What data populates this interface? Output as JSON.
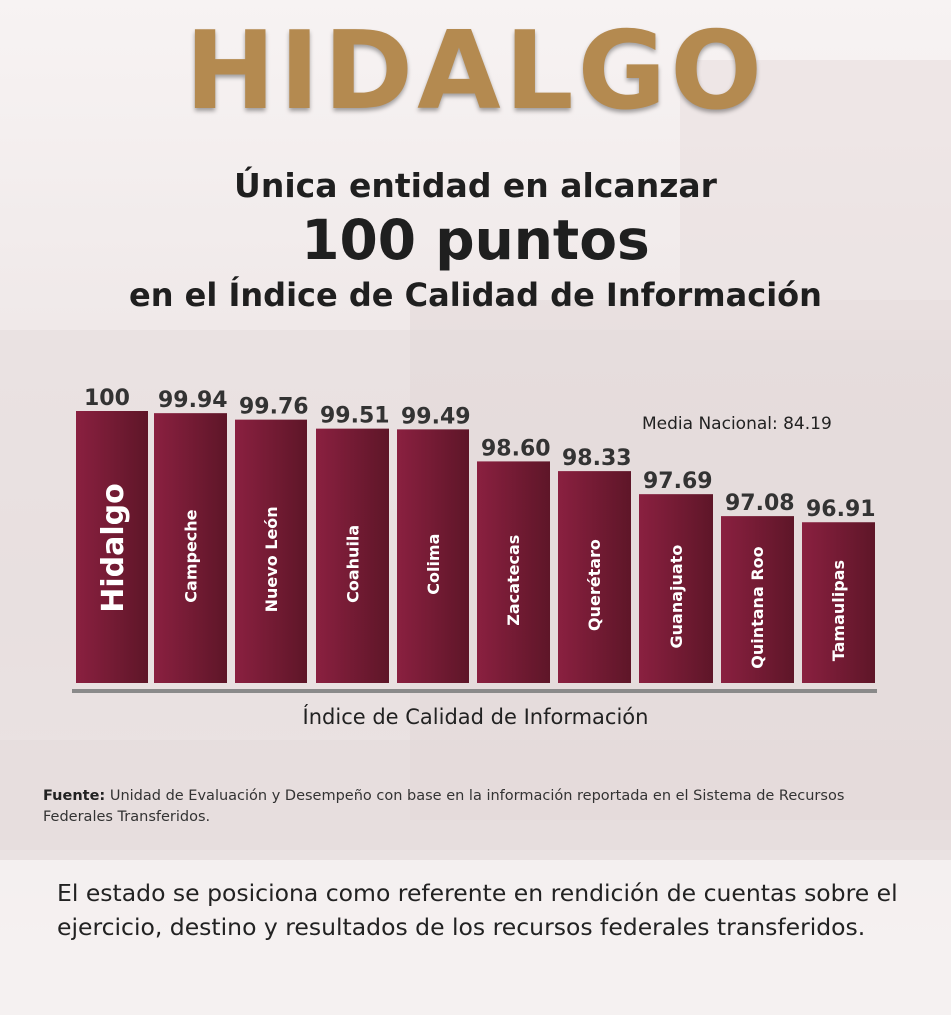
{
  "header": {
    "title": "HIDALGO",
    "line1": "Única entidad en alcanzar",
    "line2": "100 puntos",
    "line3": "en el Índice de Calidad de Información"
  },
  "chart_data": {
    "type": "bar",
    "categories": [
      "Hidalgo",
      "Campeche",
      "Nuevo León",
      "Coahuila",
      "Colima",
      "Zacatecas",
      "Querétaro",
      "Guanajuato",
      "Quintana Roo",
      "Tamaulipas"
    ],
    "values": [
      100,
      99.94,
      99.76,
      99.51,
      99.49,
      98.6,
      98.33,
      97.69,
      97.08,
      96.91
    ],
    "value_labels": [
      "100",
      "99.94",
      "99.76",
      "99.51",
      "99.49",
      "98.60",
      "98.33",
      "97.69",
      "97.08",
      "96.91"
    ],
    "xlabel": "Índice de Calidad de Información",
    "annotation": "Media Nacional: 84.19",
    "bar_color": "#8a2040",
    "bar_color_dark": "#5e1628"
  },
  "source": {
    "label": "Fuente:",
    "text": "Unidad de Evaluación y Desempeño con base en la información reportada en el Sistema de Recursos Federales Transferidos."
  },
  "footer": {
    "text": "El estado se posiciona como referente en rendición de cuentas sobre el ejercicio, destino y resultados de los recursos federales transferidos."
  },
  "colors": {
    "title_gold": "#b48a50",
    "axis_gray": "#8a8a8a"
  }
}
